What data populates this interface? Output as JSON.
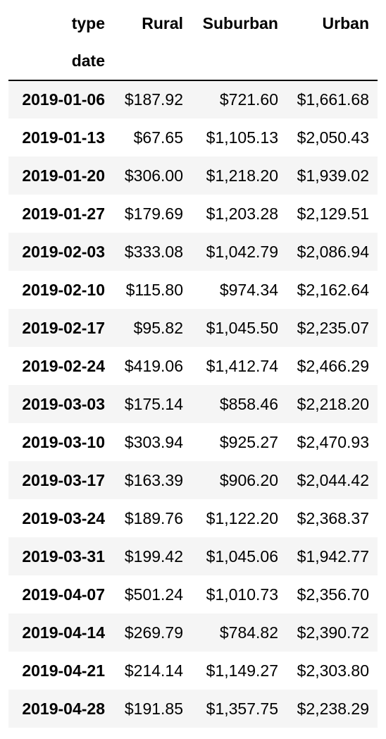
{
  "header": {
    "columns_name": "type",
    "index_name": "date",
    "columns": [
      "Rural",
      "Suburban",
      "Urban"
    ]
  },
  "rows": [
    {
      "date": "2019-01-06",
      "rural": "$187.92",
      "suburban": "$721.60",
      "urban": "$1,661.68"
    },
    {
      "date": "2019-01-13",
      "rural": "$67.65",
      "suburban": "$1,105.13",
      "urban": "$2,050.43"
    },
    {
      "date": "2019-01-20",
      "rural": "$306.00",
      "suburban": "$1,218.20",
      "urban": "$1,939.02"
    },
    {
      "date": "2019-01-27",
      "rural": "$179.69",
      "suburban": "$1,203.28",
      "urban": "$2,129.51"
    },
    {
      "date": "2019-02-03",
      "rural": "$333.08",
      "suburban": "$1,042.79",
      "urban": "$2,086.94"
    },
    {
      "date": "2019-02-10",
      "rural": "$115.80",
      "suburban": "$974.34",
      "urban": "$2,162.64"
    },
    {
      "date": "2019-02-17",
      "rural": "$95.82",
      "suburban": "$1,045.50",
      "urban": "$2,235.07"
    },
    {
      "date": "2019-02-24",
      "rural": "$419.06",
      "suburban": "$1,412.74",
      "urban": "$2,466.29"
    },
    {
      "date": "2019-03-03",
      "rural": "$175.14",
      "suburban": "$858.46",
      "urban": "$2,218.20"
    },
    {
      "date": "2019-03-10",
      "rural": "$303.94",
      "suburban": "$925.27",
      "urban": "$2,470.93"
    },
    {
      "date": "2019-03-17",
      "rural": "$163.39",
      "suburban": "$906.20",
      "urban": "$2,044.42"
    },
    {
      "date": "2019-03-24",
      "rural": "$189.76",
      "suburban": "$1,122.20",
      "urban": "$2,368.37"
    },
    {
      "date": "2019-03-31",
      "rural": "$199.42",
      "suburban": "$1,045.06",
      "urban": "$1,942.77"
    },
    {
      "date": "2019-04-07",
      "rural": "$501.24",
      "suburban": "$1,010.73",
      "urban": "$2,356.70"
    },
    {
      "date": "2019-04-14",
      "rural": "$269.79",
      "suburban": "$784.82",
      "urban": "$2,390.72"
    },
    {
      "date": "2019-04-21",
      "rural": "$214.14",
      "suburban": "$1,149.27",
      "urban": "$2,303.80"
    },
    {
      "date": "2019-04-28",
      "rural": "$191.85",
      "suburban": "$1,357.75",
      "urban": "$2,238.29"
    }
  ]
}
